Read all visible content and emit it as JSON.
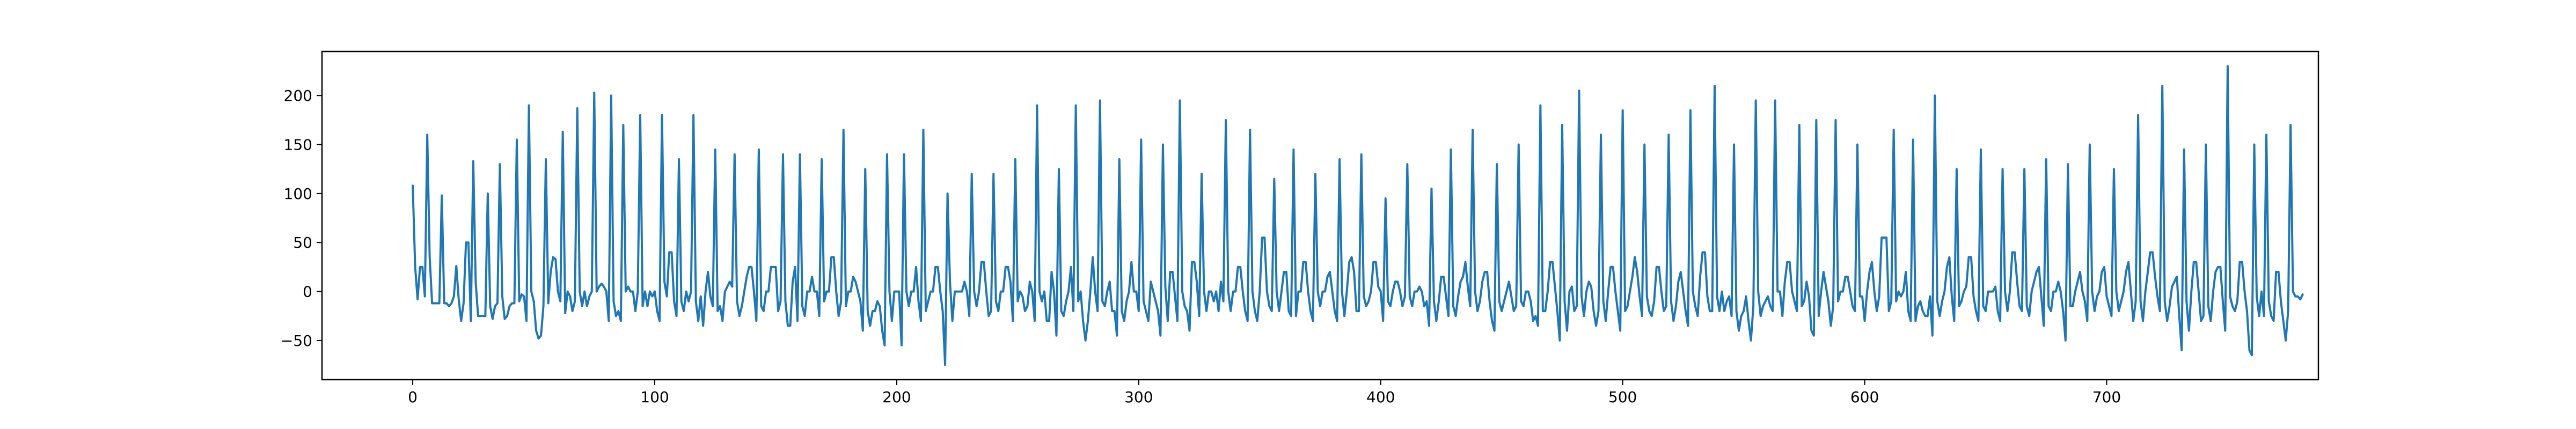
{
  "chart_data": {
    "type": "line",
    "title": "",
    "xlabel": "",
    "ylabel": "",
    "xlim": [
      -37.5,
      787.5
    ],
    "ylim": [
      -90,
      245
    ],
    "x_ticks": [
      0,
      100,
      200,
      300,
      400,
      500,
      600,
      700
    ],
    "y_ticks": [
      -50,
      0,
      50,
      100,
      150,
      200
    ],
    "x_tick_labels": [
      "0",
      "100",
      "200",
      "300",
      "400",
      "500",
      "600",
      "700"
    ],
    "y_tick_labels": [
      "−50",
      "0",
      "50",
      "100",
      "150",
      "200"
    ],
    "grid": false,
    "legend": "none",
    "line_color": "#1f77b4",
    "series": [
      {
        "values": [
          108,
          25,
          -8,
          25,
          25,
          -5,
          160,
          35,
          -12,
          -12,
          -12,
          -12,
          98,
          -12,
          -12,
          -15,
          -12,
          -5,
          26,
          -8,
          -30,
          -12,
          50,
          50,
          -30,
          133,
          10,
          -25,
          -25,
          -25,
          -25,
          100,
          -15,
          -28,
          -15,
          -12,
          130,
          -5,
          -28,
          -25,
          -15,
          -12,
          -12,
          155,
          -10,
          -3,
          -5,
          -30,
          190,
          0,
          -10,
          -40,
          -48,
          -45,
          -15,
          135,
          -12,
          20,
          35,
          33,
          0,
          -10,
          163,
          -22,
          0,
          -5,
          -20,
          -10,
          187,
          0,
          -15,
          0,
          -15,
          -5,
          0,
          203,
          0,
          5,
          8,
          5,
          0,
          -30,
          200,
          -10,
          -25,
          -20,
          -30,
          170,
          0,
          5,
          0,
          0,
          -20,
          0,
          180,
          -15,
          0,
          -15,
          0,
          -5,
          0,
          -20,
          -30,
          180,
          10,
          -5,
          40,
          40,
          -10,
          -25,
          135,
          -10,
          -20,
          0,
          -10,
          0,
          180,
          -10,
          -30,
          -5,
          -35,
          0,
          20,
          -5,
          -15,
          145,
          -20,
          -15,
          -30,
          0,
          5,
          10,
          5,
          140,
          -10,
          -25,
          -15,
          0,
          15,
          25,
          25,
          0,
          -30,
          145,
          -15,
          -20,
          0,
          0,
          25,
          25,
          25,
          -20,
          -10,
          140,
          -10,
          -35,
          -35,
          10,
          25,
          -30,
          140,
          -15,
          -25,
          0,
          0,
          15,
          0,
          0,
          -25,
          135,
          -10,
          0,
          0,
          35,
          35,
          0,
          -25,
          -10,
          165,
          -15,
          0,
          0,
          15,
          10,
          0,
          -10,
          -40,
          125,
          -20,
          -35,
          -20,
          -20,
          -10,
          -15,
          -40,
          -55,
          140,
          0,
          -30,
          0,
          0,
          0,
          -55,
          140,
          0,
          -15,
          0,
          0,
          25,
          -10,
          -30,
          165,
          -20,
          -10,
          0,
          0,
          25,
          25,
          0,
          -20,
          -75,
          100,
          10,
          -30,
          0,
          0,
          0,
          0,
          10,
          0,
          -25,
          120,
          0,
          -15,
          0,
          30,
          30,
          0,
          -25,
          -20,
          120,
          -10,
          -20,
          0,
          0,
          25,
          25,
          10,
          -30,
          135,
          -10,
          0,
          -5,
          -20,
          -15,
          10,
          0,
          -30,
          190,
          0,
          -10,
          0,
          -30,
          -30,
          20,
          0,
          -45,
          125,
          -20,
          -25,
          -10,
          0,
          25,
          -20,
          190,
          -10,
          0,
          -30,
          -50,
          -30,
          0,
          35,
          0,
          -20,
          195,
          -10,
          -15,
          0,
          10,
          -20,
          -20,
          -45,
          135,
          -20,
          -30,
          -10,
          0,
          30,
          0,
          0,
          -20,
          155,
          -10,
          -20,
          -30,
          10,
          0,
          -10,
          -20,
          -45,
          150,
          5,
          -30,
          20,
          20,
          -5,
          -30,
          195,
          0,
          -15,
          -20,
          -40,
          30,
          30,
          10,
          -25,
          120,
          0,
          -20,
          0,
          0,
          -10,
          0,
          -20,
          10,
          -10,
          175,
          0,
          -20,
          0,
          0,
          25,
          25,
          0,
          -20,
          -30,
          165,
          0,
          -20,
          -30,
          0,
          55,
          55,
          0,
          -15,
          -20,
          115,
          0,
          -20,
          0,
          20,
          20,
          -20,
          -25,
          145,
          -25,
          0,
          0,
          30,
          30,
          0,
          -20,
          -30,
          120,
          0,
          -15,
          0,
          0,
          15,
          20,
          0,
          -20,
          -30,
          135,
          0,
          -25,
          0,
          30,
          35,
          20,
          -20,
          -20,
          140,
          -5,
          -15,
          -10,
          0,
          30,
          30,
          5,
          0,
          -30,
          95,
          -10,
          -15,
          0,
          10,
          10,
          0,
          -15,
          -5,
          130,
          -5,
          -15,
          0,
          0,
          5,
          0,
          -15,
          -10,
          -35,
          105,
          -10,
          -30,
          -10,
          15,
          15,
          -5,
          -25,
          145,
          -15,
          -25,
          -5,
          10,
          15,
          30,
          5,
          -15,
          165,
          0,
          -20,
          -10,
          10,
          20,
          20,
          -10,
          -30,
          -40,
          130,
          -10,
          -20,
          -10,
          0,
          10,
          -5,
          -20,
          -15,
          150,
          -10,
          -15,
          0,
          0,
          -10,
          -30,
          -25,
          -35,
          190,
          -20,
          -20,
          0,
          30,
          30,
          5,
          -20,
          -50,
          170,
          -10,
          -40,
          0,
          5,
          -20,
          -15,
          205,
          -5,
          -25,
          0,
          10,
          5,
          -20,
          -35,
          -20,
          160,
          -10,
          -30,
          0,
          25,
          25,
          0,
          -20,
          -40,
          185,
          -20,
          -15,
          0,
          15,
          35,
          20,
          -5,
          -25,
          150,
          -5,
          -20,
          -25,
          -10,
          25,
          25,
          0,
          -20,
          -15,
          160,
          -10,
          -30,
          -15,
          10,
          20,
          0,
          -20,
          -35,
          185,
          0,
          -15,
          -25,
          15,
          40,
          40,
          -5,
          -20,
          -20,
          210,
          -5,
          -20,
          0,
          -20,
          -10,
          -5,
          -25,
          150,
          -20,
          -40,
          -25,
          -20,
          -5,
          -30,
          -50,
          -15,
          195,
          0,
          -25,
          -15,
          -10,
          -5,
          -15,
          -20,
          195,
          0,
          0,
          -25,
          10,
          30,
          30,
          0,
          -10,
          -20,
          170,
          -15,
          -10,
          10,
          -5,
          -40,
          -45,
          175,
          -25,
          0,
          20,
          5,
          -10,
          -35,
          -15,
          175,
          -10,
          0,
          0,
          15,
          15,
          0,
          -15,
          -20,
          150,
          -5,
          -5,
          -30,
          0,
          20,
          30,
          0,
          -20,
          -5,
          55,
          55,
          55,
          -20,
          -10,
          165,
          -10,
          0,
          -5,
          0,
          20,
          -20,
          -30,
          155,
          -30,
          -15,
          -10,
          -20,
          -25,
          -25,
          -5,
          -45,
          200,
          -10,
          -25,
          -10,
          0,
          25,
          35,
          -5,
          -30,
          125,
          -15,
          -10,
          0,
          5,
          35,
          35,
          -5,
          -20,
          -30,
          145,
          -15,
          -20,
          0,
          0,
          0,
          5,
          -20,
          -30,
          125,
          0,
          -20,
          0,
          40,
          40,
          10,
          -15,
          -20,
          125,
          -15,
          -25,
          0,
          10,
          20,
          25,
          -5,
          -35,
          135,
          -15,
          -20,
          0,
          0,
          10,
          0,
          -20,
          -50,
          130,
          -15,
          -15,
          0,
          10,
          20,
          0,
          -10,
          -30,
          150,
          0,
          -20,
          -5,
          0,
          20,
          25,
          -5,
          -15,
          -25,
          125,
          0,
          -20,
          -10,
          0,
          20,
          30,
          0,
          -30,
          -10,
          180,
          -10,
          -30,
          0,
          20,
          40,
          40,
          15,
          -5,
          -20,
          210,
          -10,
          -30,
          -15,
          5,
          10,
          15,
          -25,
          -60,
          145,
          -10,
          -40,
          0,
          30,
          30,
          0,
          -30,
          -25,
          150,
          -15,
          -30,
          0,
          20,
          25,
          25,
          -10,
          -40,
          230,
          -5,
          -15,
          -20,
          -10,
          30,
          30,
          0,
          -20,
          -60,
          -65,
          150,
          -5,
          -25,
          0,
          -25,
          160,
          -10,
          -25,
          -30,
          20,
          20,
          -10,
          -30,
          -50,
          -20,
          170,
          0,
          -5,
          -5,
          -8,
          -3
        ]
      }
    ]
  }
}
